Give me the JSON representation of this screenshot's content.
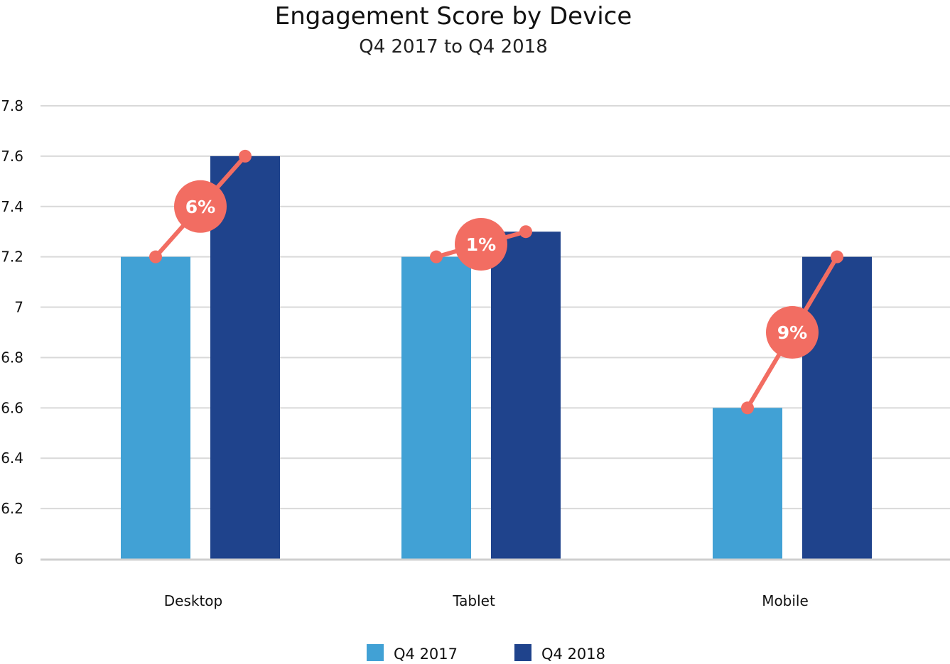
{
  "chart_data": {
    "type": "bar",
    "title": "Engagement Score by Device",
    "subtitle": "Q4 2017 to Q4 2018",
    "categories": [
      "Desktop",
      "Tablet",
      "Mobile"
    ],
    "series": [
      {
        "name": "Q4 2017",
        "values": [
          7.2,
          7.2,
          6.6
        ],
        "color": "#41A1D5"
      },
      {
        "name": "Q4 2018",
        "values": [
          7.6,
          7.3,
          7.2
        ],
        "color": "#1F438C"
      }
    ],
    "change_labels": [
      "6%",
      "1%",
      "9%"
    ],
    "change_color": "#F26D62",
    "ylim": [
      6,
      7.8
    ],
    "yticks": [
      {
        "value": 6,
        "label": "6"
      },
      {
        "value": 6.2,
        "label": "6.2"
      },
      {
        "value": 6.4,
        "label": "6.4"
      },
      {
        "value": 6.6,
        "label": "6.6"
      },
      {
        "value": 6.8,
        "label": "6.8"
      },
      {
        "value": 7,
        "label": "7"
      },
      {
        "value": 7.2,
        "label": "7.2"
      },
      {
        "value": 7.4,
        "label": "7.4"
      },
      {
        "value": 7.6,
        "label": "7.6"
      },
      {
        "value": 7.8,
        "label": "7.8"
      }
    ],
    "grid": true,
    "legend_position": "bottom",
    "xlabel": "",
    "ylabel": ""
  }
}
